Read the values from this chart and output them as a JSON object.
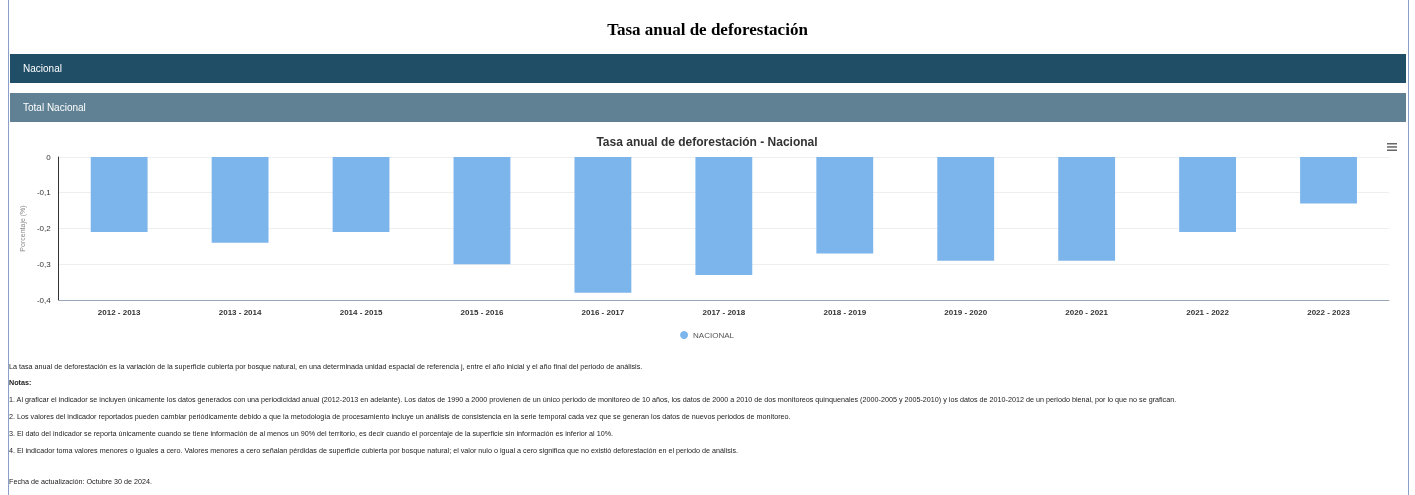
{
  "chart_data": {
    "type": "bar",
    "title": "Tasa anual de deforestación",
    "subtitle": "Tasa anual de deforestación - Nacional",
    "ylabel": "Porcentaje (%)",
    "categories": [
      "2012 - 2013",
      "2013 - 2014",
      "2014 - 2015",
      "2015 - 2016",
      "2016 - 2017",
      "2017 - 2018",
      "2018 - 2019",
      "2019 - 2020",
      "2020 - 2021",
      "2021 - 2022",
      "2022 - 2023"
    ],
    "series": [
      {
        "name": "NACIONAL",
        "color": "#7cb5ec",
        "values": [
          -0.21,
          -0.24,
          -0.21,
          -0.3,
          -0.38,
          -0.33,
          -0.27,
          -0.29,
          -0.29,
          -0.21,
          -0.13
        ]
      }
    ],
    "ylim": [
      -0.4,
      0
    ],
    "yticks": [
      {
        "value": -0.4,
        "label": "-0,4"
      },
      {
        "value": -0.3,
        "label": "-0,3"
      },
      {
        "value": -0.2,
        "label": "-0,2"
      },
      {
        "value": -0.1,
        "label": "-0,1"
      },
      0
    ],
    "grid": "y",
    "legend": "bottom",
    "annotations": [
      "Nacional",
      "Total Nacional",
      "La tasa anual de deforestación es la variación de la superficie cubierta por bosque natural, en una determinada unidad espacial de referencia j, entre el año inicial y el año final del periodo de análisis.",
      "Notas:",
      "1. Al graficar el indicador se incluyen únicamente los datos generados con una periodicidad anual (2012-2013 en adelante). Los datos de 1990 a 2000 provienen de un único periodo de monitoreo de 10 años, los datos de 2000 a 2010 de dos monitoreos quinquenales (2000-2005 y 2005-2010) y los datos de 2010-2012 de un periodo bienal, por lo que no se grafican.",
      "2. Los valores del indicador reportados pueden cambiar periódicamente debido a que la metodología de procesamiento incluye un análisis de consistencia en la serie temporal cada vez que se generan los datos de nuevos periodos de monitoreo.",
      "3. El dato del indicador se reporta únicamente cuando se tiene información de al menos un 90% del territorio, es decir cuando el porcentaje de la superficie sin información es inferior al 10%.",
      "4. El indicador toma valores menores o iguales a cero. Valores menores a cero señalan pérdidas de superficie cubierta por bosque natural; el valor nulo o igual a cero significa que no existió deforestación en el periodo de análisis.",
      "Fecha de actualización: Octubre 30 de 2024."
    ]
  }
}
